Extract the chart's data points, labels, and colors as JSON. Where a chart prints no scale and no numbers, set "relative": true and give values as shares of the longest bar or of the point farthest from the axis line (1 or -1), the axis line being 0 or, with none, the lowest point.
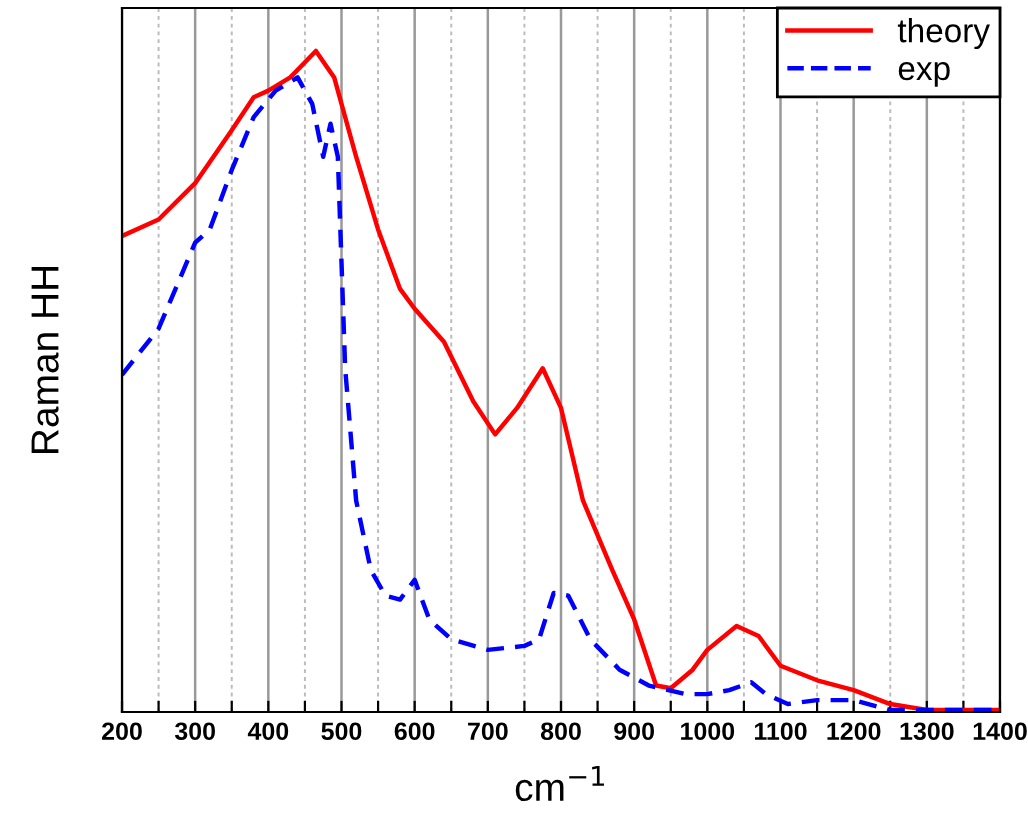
{
  "chart_data": {
    "type": "line",
    "xlabel": "cm$^{−1}$",
    "ylabel": "Raman HH",
    "relative": true,
    "grid": "x",
    "legend": "top right",
    "xlim": [
      200,
      1400
    ],
    "xticks": [
      200,
      {
        "value": 250,
        "label": null
      },
      300,
      {
        "value": 350,
        "label": null
      },
      400,
      {
        "value": 450,
        "label": null
      },
      500,
      {
        "value": 550,
        "label": null
      },
      600,
      {
        "value": 650,
        "label": null
      },
      700,
      {
        "value": 750,
        "label": null
      },
      800,
      {
        "value": 850,
        "label": null
      },
      900,
      {
        "value": 950,
        "label": null
      },
      1000,
      {
        "value": 1050,
        "label": null
      },
      1100,
      {
        "value": 1150,
        "label": null
      },
      1200,
      {
        "value": 1250,
        "label": null
      },
      1300,
      {
        "value": 1350,
        "label": null
      },
      1400
    ],
    "series": [
      {
        "name": "theory",
        "color": "#ff0000",
        "line_style": "solid",
        "x": [
          200,
          250,
          300,
          350,
          380,
          400,
          430,
          465,
          490,
          520,
          550,
          580,
          600,
          640,
          680,
          710,
          740,
          775,
          800,
          830,
          870,
          900,
          930,
          950,
          980,
          1000,
          1040,
          1070,
          1100,
          1150,
          1200,
          1250,
          1300,
          1400
        ],
        "values": [
          0.72,
          0.745,
          0.8,
          0.88,
          0.93,
          0.94,
          0.96,
          1.0,
          0.96,
          0.84,
          0.73,
          0.64,
          0.61,
          0.56,
          0.47,
          0.42,
          0.46,
          0.52,
          0.46,
          0.32,
          0.215,
          0.14,
          0.04,
          0.036,
          0.064,
          0.094,
          0.13,
          0.115,
          0.07,
          0.048,
          0.033,
          0.012,
          0.003,
          0.003
        ]
      },
      {
        "name": "exp",
        "color": "#0000ff",
        "line_style": "dashed",
        "x": [
          200,
          250,
          300,
          320,
          350,
          380,
          410,
          440,
          460,
          475,
          485,
          495,
          505,
          520,
          540,
          560,
          580,
          600,
          620,
          650,
          700,
          750,
          770,
          790,
          810,
          840,
          880,
          920,
          970,
          1000,
          1030,
          1060,
          1080,
          1110,
          1150,
          1200,
          1250,
          1300,
          1400
        ],
        "values": [
          0.51,
          0.58,
          0.71,
          0.73,
          0.82,
          0.9,
          0.94,
          0.96,
          0.92,
          0.84,
          0.89,
          0.84,
          0.52,
          0.32,
          0.215,
          0.176,
          0.17,
          0.2,
          0.14,
          0.11,
          0.094,
          0.1,
          0.11,
          0.18,
          0.176,
          0.11,
          0.064,
          0.04,
          0.027,
          0.027,
          0.033,
          0.045,
          0.027,
          0.012,
          0.018,
          0.018,
          0.003,
          0.003,
          0.003
        ]
      }
    ]
  }
}
